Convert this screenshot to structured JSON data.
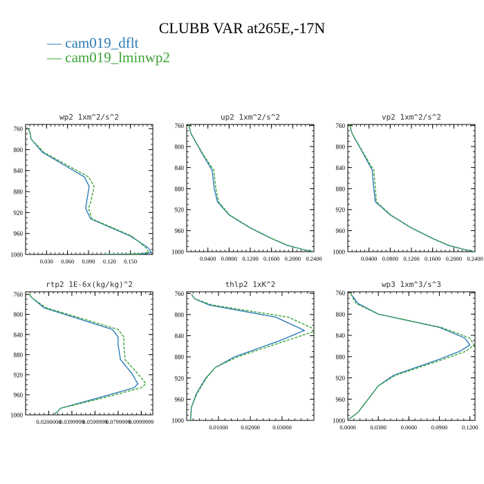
{
  "title": "CLUBB VAR at265E,-17N",
  "legend": [
    {
      "label": "cam019_dflt",
      "color": "#2c7bb6",
      "dash": "—"
    },
    {
      "label": "cam019_lminwp2",
      "color": "#3aa335",
      "dash": "—"
    }
  ],
  "chart_data": [
    {
      "type": "line",
      "title": "wp2   1xm^2/s^2",
      "xlim": [
        0.0,
        0.182
      ],
      "ylim": [
        1000,
        752
      ],
      "xticks": [
        0.03,
        0.06,
        0.09,
        0.12,
        0.15
      ],
      "xtick_labels": [
        "0.030",
        "0.060",
        "0.090",
        "0.120",
        "0.150"
      ],
      "yticks": [
        760,
        800,
        840,
        880,
        920,
        960,
        1000
      ],
      "series": [
        {
          "name": "cam019_dflt",
          "color": "#2c7bb6",
          "dashed": false,
          "x": [
            0.002,
            0.006,
            0.008,
            0.024,
            0.084,
            0.091,
            0.087,
            0.086,
            0.093,
            0.15,
            0.175,
            0.18,
            0.17,
            0.11
          ],
          "y": [
            758,
            766,
            780,
            805,
            852,
            870,
            902,
            912,
            932,
            965,
            987,
            996,
            999,
            1000
          ]
        },
        {
          "name": "cam019_lminwp2",
          "color": "#3aa335",
          "dashed": true,
          "x": [
            0.002,
            0.006,
            0.008,
            0.026,
            0.09,
            0.098,
            0.093,
            0.09,
            0.095,
            0.152,
            0.172,
            0.176,
            0.16,
            0.11
          ],
          "y": [
            758,
            766,
            780,
            805,
            852,
            870,
            902,
            912,
            932,
            965,
            987,
            996,
            999,
            1000
          ]
        }
      ]
    },
    {
      "type": "line",
      "title": "up2   1xm^2/s^2",
      "xlim": [
        0.0,
        0.24
      ],
      "ylim": [
        1000,
        758
      ],
      "xticks": [
        0.04,
        0.08,
        0.12,
        0.16,
        0.2,
        0.24
      ],
      "xtick_labels": [
        "0.0400",
        "0.0800",
        "0.1200",
        "0.1600",
        "0.2000",
        "0.2400"
      ],
      "yticks": [
        760,
        800,
        840,
        880,
        920,
        960,
        1000
      ],
      "series": [
        {
          "name": "cam019_dflt",
          "color": "#2c7bb6",
          "dashed": false,
          "x": [
            0.004,
            0.008,
            0.03,
            0.048,
            0.052,
            0.058,
            0.08,
            0.12,
            0.16,
            0.19,
            0.22,
            0.24
          ],
          "y": [
            760,
            775,
            815,
            845,
            880,
            905,
            930,
            955,
            975,
            988,
            996,
            1000
          ]
        },
        {
          "name": "cam019_lminwp2",
          "color": "#3aa335",
          "dashed": true,
          "x": [
            0.004,
            0.008,
            0.031,
            0.051,
            0.055,
            0.06,
            0.081,
            0.121,
            0.161,
            0.191,
            0.221,
            0.24
          ],
          "y": [
            760,
            775,
            815,
            845,
            880,
            905,
            930,
            955,
            975,
            988,
            996,
            1000
          ]
        }
      ]
    },
    {
      "type": "line",
      "title": "vp2   1xm^2/s^2",
      "xlim": [
        0.0,
        0.24
      ],
      "ylim": [
        1000,
        758
      ],
      "xticks": [
        0.04,
        0.08,
        0.12,
        0.16,
        0.2,
        0.24
      ],
      "xtick_labels": [
        "0.0400",
        "0.0800",
        "0.1200",
        "0.1600",
        "0.2000",
        "0.2400"
      ],
      "yticks": [
        760,
        800,
        840,
        880,
        920,
        960,
        1000
      ],
      "series": [
        {
          "name": "cam019_dflt",
          "color": "#2c7bb6",
          "dashed": false,
          "x": [
            0.004,
            0.008,
            0.03,
            0.046,
            0.049,
            0.052,
            0.08,
            0.12,
            0.16,
            0.19,
            0.22,
            0.24
          ],
          "y": [
            760,
            775,
            815,
            845,
            880,
            905,
            930,
            955,
            975,
            988,
            996,
            1000
          ]
        },
        {
          "name": "cam019_lminwp2",
          "color": "#3aa335",
          "dashed": true,
          "x": [
            0.004,
            0.008,
            0.031,
            0.049,
            0.052,
            0.054,
            0.081,
            0.121,
            0.161,
            0.191,
            0.221,
            0.24
          ],
          "y": [
            760,
            775,
            815,
            845,
            880,
            905,
            930,
            955,
            975,
            988,
            996,
            1000
          ]
        }
      ]
    },
    {
      "type": "line",
      "title": "rtp2   1E-6x(kg/kg)^2",
      "xlim": [
        0.0,
        0.11
      ],
      "ylim": [
        1000,
        755
      ],
      "xticks": [
        0.02,
        0.04,
        0.06,
        0.08,
        0.1
      ],
      "xtick_labels": [
        "0.0200000",
        "0.0399999",
        "0.0599999",
        "0.0799999",
        "0.0999999"
      ],
      "yticks": [
        760,
        800,
        840,
        880,
        920,
        960,
        1000
      ],
      "series": [
        {
          "name": "cam019_dflt",
          "color": "#2c7bb6",
          "dashed": false,
          "x": [
            0.003,
            0.006,
            0.016,
            0.075,
            0.08,
            0.08,
            0.082,
            0.092,
            0.097,
            0.094,
            0.06,
            0.03,
            0.028,
            0.025
          ],
          "y": [
            760,
            768,
            787,
            830,
            845,
            860,
            890,
            918,
            938,
            946,
            968,
            987,
            993,
            998
          ]
        },
        {
          "name": "cam019_lminwp2",
          "color": "#3aa335",
          "dashed": true,
          "x": [
            0.003,
            0.006,
            0.018,
            0.08,
            0.085,
            0.085,
            0.086,
            0.097,
            0.104,
            0.1,
            0.064,
            0.03,
            0.028,
            0.025
          ],
          "y": [
            760,
            768,
            787,
            830,
            845,
            860,
            890,
            918,
            938,
            946,
            968,
            987,
            993,
            998
          ]
        }
      ]
    },
    {
      "type": "line",
      "title": "thlp2   1xK^2",
      "xlim": [
        0.0,
        0.04
      ],
      "ylim": [
        1000,
        757
      ],
      "xticks": [
        0.01,
        0.02,
        0.03
      ],
      "xtick_labels": [
        "0.01000",
        "0.02000",
        "0.03000"
      ],
      "yticks": [
        760,
        800,
        840,
        880,
        920,
        960,
        1000
      ],
      "series": [
        {
          "name": "cam019_dflt",
          "color": "#2c7bb6",
          "dashed": false,
          "x": [
            0.0015,
            0.0025,
            0.007,
            0.028,
            0.037,
            0.029,
            0.015,
            0.009,
            0.006,
            0.003,
            0.0015,
            0.0012
          ],
          "y": [
            762,
            770,
            782,
            805,
            830,
            850,
            880,
            900,
            920,
            950,
            975,
            1000
          ]
        },
        {
          "name": "cam019_lminwp2",
          "color": "#3aa335",
          "dashed": true,
          "x": [
            0.0015,
            0.0025,
            0.008,
            0.032,
            0.041,
            0.031,
            0.016,
            0.009,
            0.0062,
            0.0032,
            0.0015,
            0.0012
          ],
          "y": [
            762,
            770,
            782,
            805,
            830,
            850,
            880,
            900,
            920,
            950,
            975,
            1000
          ]
        }
      ]
    },
    {
      "type": "line",
      "title": "wp3   1xm^3/s^3",
      "xlim": [
        0.0,
        0.125
      ],
      "ylim": [
        1000,
        758
      ],
      "xticks": [
        0.0,
        0.03,
        0.06,
        0.09,
        0.12
      ],
      "xtick_labels": [
        "0.0000",
        "0.0300",
        "0.0600",
        "0.0900",
        "0.1200"
      ],
      "yticks": [
        760,
        800,
        840,
        880,
        920,
        960,
        1000
      ],
      "series": [
        {
          "name": "cam019_dflt",
          "color": "#2c7bb6",
          "dashed": false,
          "x": [
            0.003,
            0.01,
            0.03,
            0.09,
            0.115,
            0.12,
            0.11,
            0.09,
            0.045,
            0.03,
            0.02,
            0.01,
            0.001
          ],
          "y": [
            762,
            780,
            800,
            825,
            845,
            858,
            870,
            885,
            915,
            935,
            960,
            985,
            998
          ]
        },
        {
          "name": "cam019_lminwp2",
          "color": "#3aa335",
          "dashed": true,
          "x": [
            0.003,
            0.008,
            0.03,
            0.092,
            0.12,
            0.124,
            0.116,
            0.094,
            0.047,
            0.03,
            0.02,
            0.01,
            0.001
          ],
          "y": [
            762,
            780,
            800,
            825,
            845,
            858,
            870,
            885,
            915,
            935,
            960,
            985,
            998
          ]
        }
      ]
    }
  ]
}
